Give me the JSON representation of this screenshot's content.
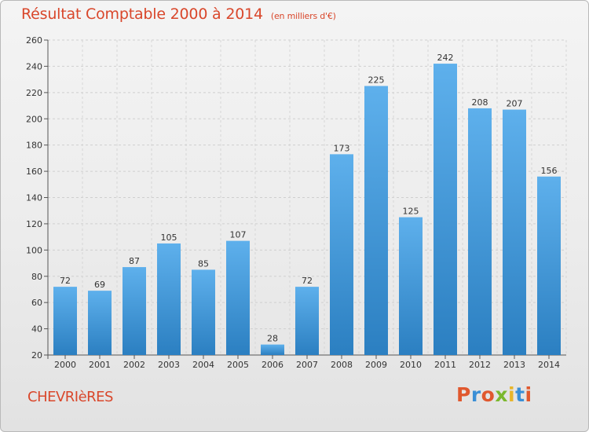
{
  "header": {
    "title": "Résultat Comptable 2000 à 2014",
    "subtitle": "(en milliers d'€)"
  },
  "footer": {
    "commune": "CHEVRIèRES",
    "logo_text": "Proxiti"
  },
  "colors": {
    "title": "#d9472b",
    "bar_top": "#5eb0ec",
    "bar_bottom": "#2b7fc1",
    "logo_letters": [
      "#e0582e",
      "#3a8fd6",
      "#e0582e",
      "#7bb82e",
      "#e8b52a",
      "#3a8fd6",
      "#e0582e"
    ]
  },
  "chart_data": {
    "type": "bar",
    "title": "Résultat Comptable 2000 à 2014",
    "xlabel": "",
    "ylabel": "",
    "categories": [
      "2000",
      "2001",
      "2002",
      "2003",
      "2004",
      "2005",
      "2006",
      "2007",
      "2008",
      "2009",
      "2010",
      "2011",
      "2012",
      "2013",
      "2014"
    ],
    "values": [
      72,
      69,
      87,
      105,
      85,
      107,
      28,
      72,
      173,
      225,
      125,
      242,
      208,
      207,
      156
    ],
    "ylim": [
      20,
      260
    ],
    "yticks": [
      20,
      40,
      60,
      80,
      100,
      120,
      140,
      160,
      180,
      200,
      220,
      240,
      260
    ],
    "grid": true,
    "legend": "none"
  }
}
